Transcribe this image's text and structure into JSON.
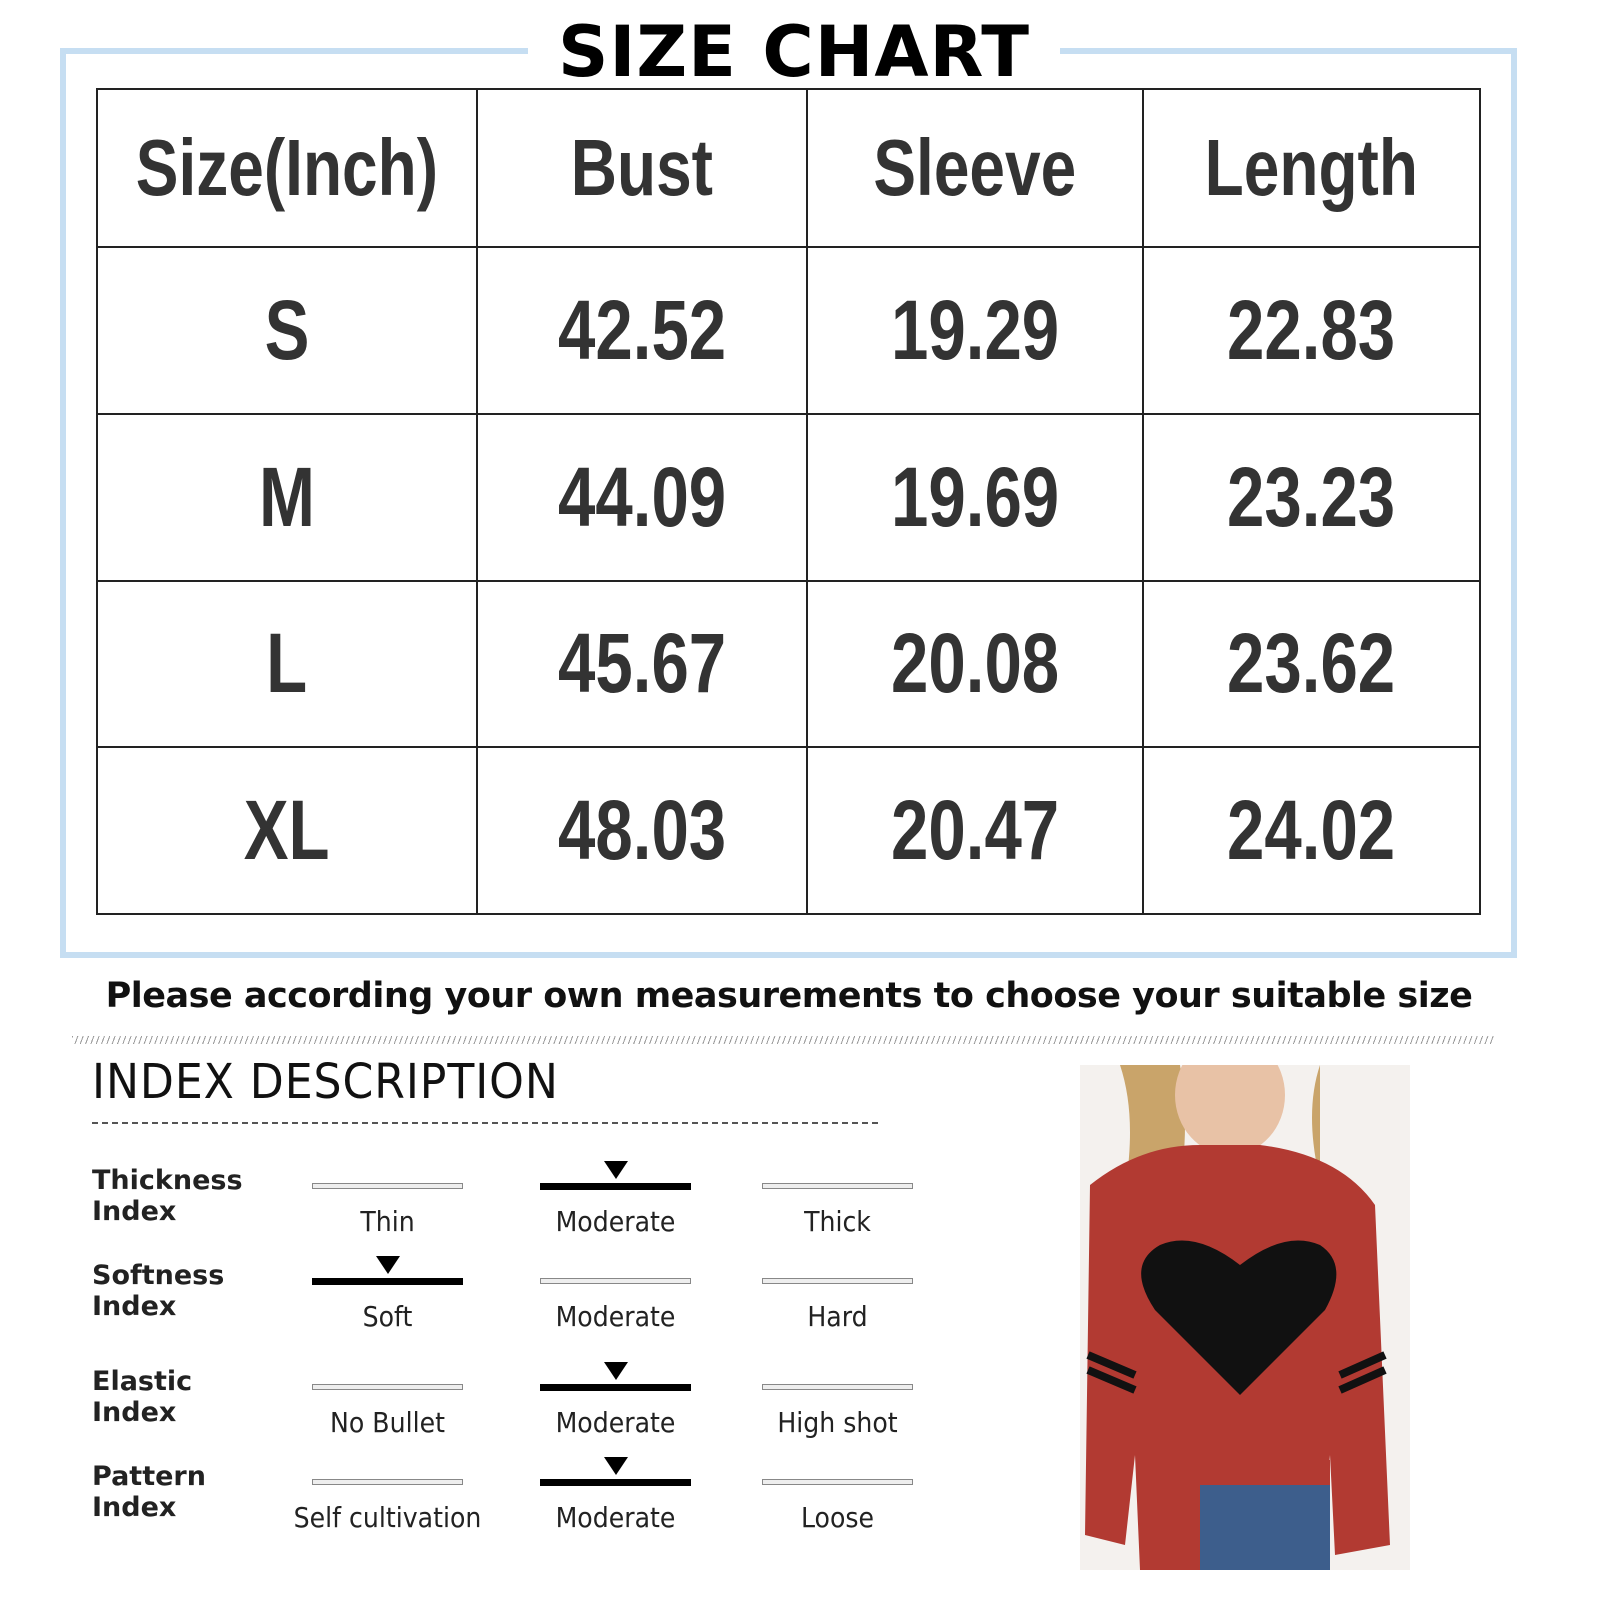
{
  "title": "SIZE CHART",
  "table": {
    "headers": [
      "Size(Inch)",
      "Bust",
      "Sleeve",
      "Length"
    ],
    "rows": [
      [
        "S",
        "42.52",
        "19.29",
        "22.83"
      ],
      [
        "M",
        "44.09",
        "19.69",
        "23.23"
      ],
      [
        "L",
        "45.67",
        "20.08",
        "23.62"
      ],
      [
        "XL",
        "48.03",
        "20.47",
        "24.02"
      ]
    ]
  },
  "note": "Please according your own measurements to choose your suitable size",
  "index": {
    "title": "INDEX DESCRIPTION",
    "rows": [
      {
        "label": "Thickness Index",
        "options": [
          "Thin",
          "Moderate",
          "Thick"
        ],
        "selected": 1
      },
      {
        "label": "Softness Index",
        "options": [
          "Soft",
          "Moderate",
          "Hard"
        ],
        "selected": 0
      },
      {
        "label": "Elastic Index",
        "options": [
          "No Bullet",
          "Moderate",
          "High shot"
        ],
        "selected": 1
      },
      {
        "label": "Pattern Index",
        "options": [
          "Self cultivation",
          "Moderate",
          "Loose"
        ],
        "selected": 1
      }
    ]
  },
  "colors": {
    "frame": "#c6def2",
    "sweater": "#b23a32",
    "heart": "#111111"
  },
  "photo": "model-in-red-heart-sweater"
}
